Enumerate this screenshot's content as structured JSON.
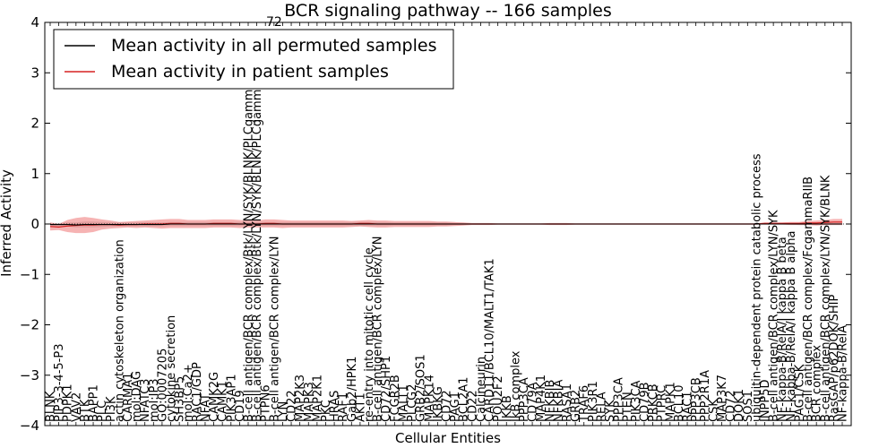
{
  "chart_data": {
    "type": "line",
    "title": "BCR signaling pathway -- 166 samples",
    "xlabel": "Cellular Entities",
    "ylabel": "Inferred Activity",
    "ylim": [
      -4,
      4
    ],
    "yticks": [
      4,
      3,
      2,
      1,
      0,
      -1,
      -2,
      -3,
      -4
    ],
    "ytick_labels": [
      "4",
      "3",
      "2",
      "1",
      "0",
      "−1",
      "−2",
      "−3",
      "−4"
    ],
    "legend": {
      "position": "top-left",
      "entries": [
        {
          "label": "Mean activity in all permuted samples",
          "color": "#000000"
        },
        {
          "label": "Mean activity in patient samples",
          "color": "#d62020"
        }
      ]
    },
    "truncated_label_fragment": "72",
    "categories": [
      "BLNK",
      "PIP3-3-4-5-P3",
      "PDPK1",
      "VAV2",
      "BTK",
      "BAPP1",
      "PLC",
      "PI3K",
      "actin cytoskeleton organization",
      "CARMA1",
      "mol:DAG",
      "NFATC3",
      "mol:IP3",
      "GO:0007205",
      "cytokine secretion",
      "SH3BP5",
      "mol:Ca2+",
      "RAC1/GDP",
      "NFAT",
      "CAMK2G",
      "CAMK1",
      "PIK3AP1",
      "CD19",
      "B-cell antigen/BCR complex/Btk/LYN/SYK/BLNK/PLCgamma2",
      "B-cell antigen/BCR complex/Btk/LYN/SYK/BLNK/PLCgamma2",
      "PTPN6",
      "B-cell antigen/BCR complex/LYN",
      "LYN",
      "CD22",
      "MAP2K3",
      "MAPK3",
      "MAP2K1",
      "PKC",
      "HRAS",
      "RAF1",
      "Gab2/HPK1",
      "AKT1",
      "re-entry into mitotic cell cycle",
      "B-cell antigen/BCR complex/LYN",
      "CD72/SHP1",
      "FCGR2B",
      "MALT1",
      "PLCG2",
      "GRB2/SOS1",
      "MAPK14",
      "IKBKG",
      "CD72",
      "PAG1",
      "BCL2A1",
      "CD22",
      "Calcineurin",
      "CARD11/BCL10/MALT1/TAK1",
      "POU2F2",
      "IKKB",
      "IkB complex",
      "PPP3CA",
      "CD79A",
      "MAP4K1",
      "NFKBIB",
      "NFKBIA",
      "RASA1",
      "GRB2",
      "TRAF6",
      "PIK3R1",
      "RELA",
      "SYK",
      "PPP3CA",
      "PTEN",
      "PIK3CA",
      "CD79B",
      "PRKCB",
      "PTPRC",
      "MAPK1",
      "BCL10",
      "RAC1",
      "PPP3CB",
      "PPP2R1A",
      "CSK",
      "MAP3K7",
      "CD72",
      "DOK1",
      "SOS1",
      "ubiquitin-dependent protein catabolic process",
      "INPP5D",
      "B-cell antigen/BCR complex/LYN/SYK",
      "NF-kappa-B/RelA/I kappa B beta",
      "NF-kappa-B/RelA/I kappa B alpha",
      "PAG1/CSK",
      "B-cell antigen/BCR complex/FcgammaRIIB",
      "BCR complex",
      "B-cell antigen/BCR complex/LYN/SYK/BLNK",
      "RasGAP/p62DOK/SHIP",
      "NF-kappa-B/RelA"
    ],
    "patient_mean": [
      -0.05,
      -0.06,
      -0.04,
      -0.03,
      -0.02,
      -0.02,
      -0.01,
      -0.01,
      -0.02,
      -0.01,
      -0.01,
      0.0,
      0.0,
      0.0,
      0.01,
      0.01,
      0.0,
      0.0,
      0.0,
      0.01,
      0.01,
      0.01,
      0.0,
      0.0,
      0.0,
      0.01,
      0.01,
      0.0,
      0.0,
      0.0,
      0.0,
      0.0,
      0.0,
      0.0,
      0.0,
      0.0,
      0.01,
      0.01,
      0.0,
      0.0,
      0.0,
      0.0,
      0.0,
      0.0,
      0.0,
      0.0,
      0.0,
      0.0,
      0.0,
      0.0,
      0.0,
      0.0,
      0.0,
      0.0,
      0.0,
      0.0,
      0.0,
      0.0,
      0.0,
      0.0,
      0.0,
      0.0,
      0.0,
      0.0,
      0.0,
      0.0,
      0.0,
      0.0,
      0.0,
      0.0,
      0.0,
      0.0,
      0.0,
      0.0,
      0.0,
      0.0,
      0.0,
      0.0,
      0.0,
      0.0,
      0.0,
      0.0,
      0.0,
      0.01,
      0.01,
      0.01,
      0.01,
      0.01,
      0.02,
      0.02,
      0.03,
      0.04,
      0.04
    ],
    "patient_ci_half_width": [
      0.08,
      0.06,
      0.12,
      0.15,
      0.16,
      0.14,
      0.1,
      0.08,
      0.06,
      0.06,
      0.07,
      0.07,
      0.08,
      0.09,
      0.09,
      0.09,
      0.08,
      0.08,
      0.08,
      0.08,
      0.08,
      0.08,
      0.08,
      0.07,
      0.07,
      0.08,
      0.08,
      0.08,
      0.07,
      0.07,
      0.07,
      0.07,
      0.07,
      0.07,
      0.07,
      0.06,
      0.06,
      0.07,
      0.07,
      0.07,
      0.06,
      0.06,
      0.06,
      0.06,
      0.06,
      0.05,
      0.05,
      0.04,
      0.03,
      0.02,
      0.02,
      0.02,
      0.01,
      0.01,
      0.01,
      0.01,
      0.01,
      0.01,
      0.02,
      0.02,
      0.02,
      0.01,
      0.01,
      0.01,
      0.01,
      0.01,
      0.01,
      0.01,
      0.01,
      0.01,
      0.01,
      0.01,
      0.01,
      0.01,
      0.01,
      0.01,
      0.01,
      0.01,
      0.01,
      0.01,
      0.01,
      0.01,
      0.01,
      0.02,
      0.02,
      0.02,
      0.03,
      0.03,
      0.04,
      0.05,
      0.05,
      0.06,
      0.06
    ],
    "permuted_mean": [
      -0.01,
      -0.01,
      -0.01,
      -0.02,
      -0.01,
      -0.01,
      -0.01,
      -0.01,
      -0.01,
      -0.01,
      -0.01,
      -0.01,
      -0.01,
      -0.01,
      0.0,
      0.0,
      0.0,
      0.0,
      0.0,
      0.0,
      0.0,
      0.0,
      0.0,
      0.0,
      0.0,
      0.0,
      0.0,
      0.0,
      0.0,
      0.0,
      0.0,
      0.0,
      0.0,
      0.0,
      0.0,
      0.0,
      0.0,
      0.0,
      0.0,
      0.0,
      0.0,
      0.0,
      0.0,
      0.0,
      0.0,
      0.0,
      0.0,
      0.0,
      0.0,
      0.0,
      0.0,
      0.0,
      0.0,
      0.0,
      0.0,
      0.0,
      0.0,
      0.0,
      0.0,
      0.0,
      0.0,
      0.0,
      0.0,
      0.0,
      0.0,
      0.0,
      0.0,
      0.0,
      0.0,
      0.0,
      0.0,
      0.0,
      0.0,
      0.0,
      0.0,
      0.0,
      0.0,
      0.0,
      0.0,
      0.0,
      0.0,
      0.0,
      0.0,
      0.0,
      0.0,
      0.0,
      0.0,
      0.0,
      0.0,
      0.0,
      0.0,
      0.0,
      0.0
    ],
    "permuted_ci_half_width": [
      0.03,
      0.03,
      0.04,
      0.05,
      0.06,
      0.06,
      0.05,
      0.04,
      0.04,
      0.04,
      0.04,
      0.04,
      0.04,
      0.04,
      0.04,
      0.04,
      0.04,
      0.04,
      0.04,
      0.04,
      0.04,
      0.04,
      0.04,
      0.04,
      0.04,
      0.04,
      0.04,
      0.04,
      0.04,
      0.04,
      0.04,
      0.04,
      0.04,
      0.04,
      0.04,
      0.04,
      0.04,
      0.04,
      0.04,
      0.04,
      0.03,
      0.03,
      0.03,
      0.03,
      0.03,
      0.03,
      0.03,
      0.02,
      0.02,
      0.01,
      0.01,
      0.01,
      0.01,
      0.01,
      0.01,
      0.01,
      0.01,
      0.01,
      0.01,
      0.01,
      0.01,
      0.01,
      0.01,
      0.01,
      0.01,
      0.01,
      0.01,
      0.01,
      0.01,
      0.01,
      0.01,
      0.01,
      0.01,
      0.01,
      0.01,
      0.01,
      0.01,
      0.01,
      0.01,
      0.01,
      0.01,
      0.01,
      0.01,
      0.01,
      0.01,
      0.01,
      0.01,
      0.02,
      0.02,
      0.02,
      0.02,
      0.02,
      0.02
    ],
    "colors": {
      "patient": "#d62020",
      "patient_band": "#f08080",
      "permuted": "#000000",
      "permuted_band": "#bbbbbb",
      "frame": "#000000",
      "background": "#ffffff"
    }
  }
}
